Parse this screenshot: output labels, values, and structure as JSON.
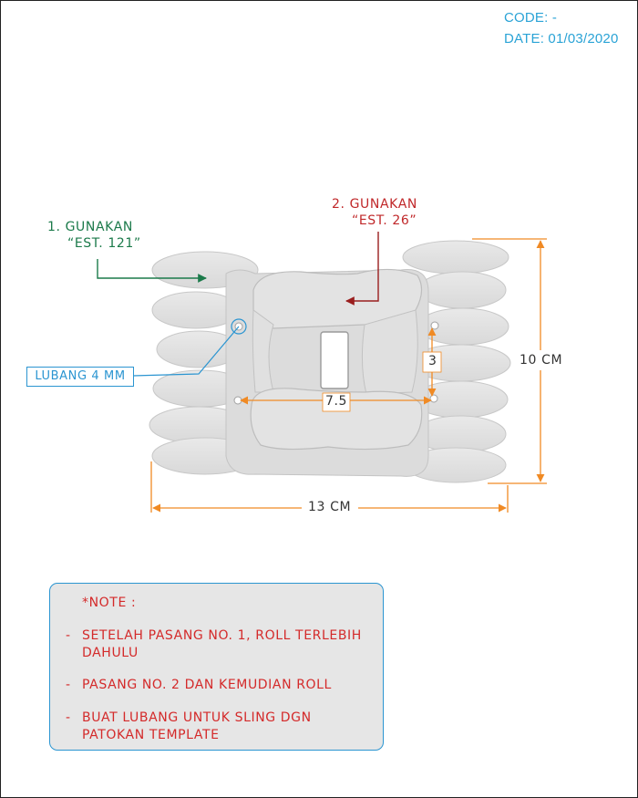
{
  "header": {
    "code": "CODE: -",
    "date": "DATE: 01/03/2020"
  },
  "callouts": {
    "step1_line1": "1. GUNAKAN",
    "step1_line2": "“EST. 121”",
    "step2_line1": "2. GUNAKAN",
    "step2_line2": "“EST. 26”",
    "hole_label": "LUBANG 4 MM"
  },
  "dimensions": {
    "height": "10 CM",
    "width": "13 CM",
    "hole_spacing_vertical": "3",
    "hole_spacing_horizontal": "7.5"
  },
  "note": {
    "title": "*NOTE :",
    "items": [
      {
        "bullet": "-",
        "line1": "SETELAH PASANG NO. 1, ROLL TERLEBIH",
        "line2": "DAHULU"
      },
      {
        "bullet": "-",
        "line1": "PASANG  NO. 2 DAN KEMUDIAN ROLL",
        "line2": ""
      },
      {
        "bullet": "-",
        "line1": "BUAT LUBANG UNTUK SLING DGN",
        "line2": "PATOKAN TEMPLATE"
      }
    ]
  },
  "colors": {
    "header": "#2aa3d6",
    "step1": "#1b7a4a",
    "step2": "#c0282a",
    "dimension": "#f08a24",
    "note_text": "#d42a2a",
    "note_border": "#2b95d1",
    "note_fill": "#e6e6e6"
  }
}
